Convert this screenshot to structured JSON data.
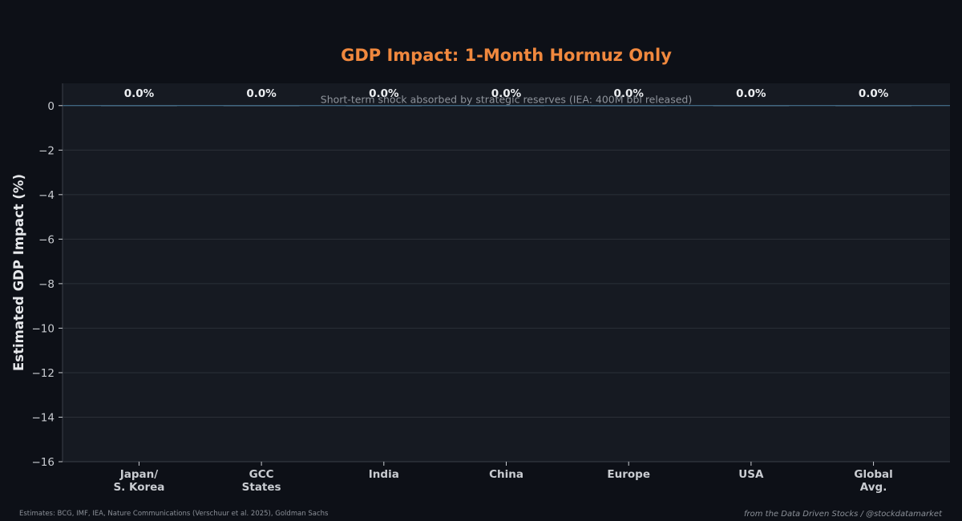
{
  "colors": {
    "background": "#0d1017",
    "plot_background": "#161a22",
    "title": "#f0883e",
    "grid": "#2b3038",
    "zero_line": "#4f7fa0",
    "tick_text": "#c9ccd1",
    "axis_label": "#e6e8eb",
    "data_label": "#eceef1",
    "subtitle": "#8e939b",
    "footer": "#8b9098"
  },
  "chart_data": {
    "type": "bar",
    "title": "GDP Impact: 1-Month Hormuz Only",
    "annotation": "Short-term shock absorbed by strategic reserves (IEA: 400M bbl released)",
    "xlabel": "",
    "ylabel": "Estimated GDP Impact (%)",
    "categories": [
      "Japan/\nS. Korea",
      "GCC\nStates",
      "India",
      "China",
      "Europe",
      "USA",
      "Global\nAvg."
    ],
    "values": [
      0.0,
      0.0,
      0.0,
      0.0,
      0.0,
      0.0,
      0.0
    ],
    "data_labels": [
      "0.0%",
      "0.0%",
      "0.0%",
      "0.0%",
      "0.0%",
      "0.0%",
      "0.0%"
    ],
    "ylim": [
      -16,
      1
    ],
    "yticks": [
      0,
      -2,
      -4,
      -6,
      -8,
      -10,
      -12,
      -14,
      -16
    ],
    "ytick_labels": [
      "0",
      "−2",
      "−4",
      "−6",
      "−8",
      "−10",
      "−12",
      "−14",
      "−16"
    ],
    "grid": true,
    "legend": "none"
  },
  "footer": {
    "source": "Estimates: BCG, IMF, IEA, Nature Communications (Verschuur et al. 2025), Goldman Sachs",
    "credit": "from the Data Driven Stocks / @stockdatamarket"
  }
}
